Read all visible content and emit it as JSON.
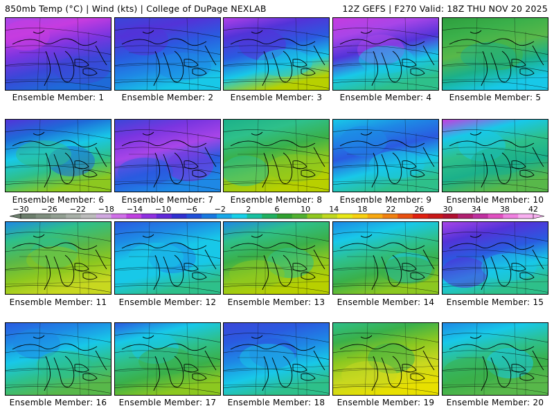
{
  "header": {
    "title_left": "850mb Temp (°C) | Wind (kts) | College of DuPage NEXLAB",
    "title_right": "12Z GEFS | F270 Valid: 18Z THU NOV 20 2025"
  },
  "members": [
    {
      "label": "Ensemble Member: 1",
      "scheme": [
        "#a845e8",
        "#c63ce0",
        "#7a35e0",
        "#3b46d8",
        "#1e6ad8"
      ]
    },
    {
      "label": "Ensemble Member: 2",
      "scheme": [
        "#3b46d8",
        "#5233d8",
        "#2a5ae0",
        "#1e88e5",
        "#18c8e8"
      ]
    },
    {
      "label": "Ensemble Member: 3",
      "scheme": [
        "#b040e8",
        "#5233d8",
        "#2a5ae0",
        "#18c8e8",
        "#b8d000"
      ]
    },
    {
      "label": "Ensemble Member: 4",
      "scheme": [
        "#c63ce0",
        "#a845e8",
        "#5233d8",
        "#18c8e8",
        "#2ec08a"
      ]
    },
    {
      "label": "Ensemble Member: 5",
      "scheme": [
        "#2e9e3e",
        "#3ab04a",
        "#58b84a",
        "#1bb08a",
        "#18c8e8"
      ]
    },
    {
      "label": "Ensemble Member: 6",
      "scheme": [
        "#5233d8",
        "#1e6ad8",
        "#18c8e8",
        "#2ec08a",
        "#8cc820"
      ]
    },
    {
      "label": "Ensemble Member: 7",
      "scheme": [
        "#3b46d8",
        "#7a35e0",
        "#a845e8",
        "#2a5ae0",
        "#1e88e5"
      ]
    },
    {
      "label": "Ensemble Member: 8",
      "scheme": [
        "#1bb08a",
        "#2ec08a",
        "#3ab04a",
        "#8cc820",
        "#b8d000"
      ]
    },
    {
      "label": "Ensemble Member: 9",
      "scheme": [
        "#18c8e8",
        "#1e88e5",
        "#2a5ae0",
        "#18c8e8",
        "#2ec08a"
      ]
    },
    {
      "label": "Ensemble Member: 10",
      "scheme": [
        "#c63ce0",
        "#18c8e8",
        "#2ec08a",
        "#1bb08a",
        "#58b84a"
      ]
    },
    {
      "label": "Ensemble Member: 11",
      "scheme": [
        "#1e88e5",
        "#2ec08a",
        "#58b84a",
        "#8cc820",
        "#c8d820"
      ]
    },
    {
      "label": "Ensemble Member: 12",
      "scheme": [
        "#2a5ae0",
        "#1e88e5",
        "#18c8e8",
        "#18c8e8",
        "#2ec08a"
      ]
    },
    {
      "label": "Ensemble Member: 13",
      "scheme": [
        "#1e88e5",
        "#2ec08a",
        "#3ab04a",
        "#8cc820",
        "#b8d000"
      ]
    },
    {
      "label": "Ensemble Member: 14",
      "scheme": [
        "#1e88e5",
        "#18c8e8",
        "#2ec08a",
        "#3ab04a",
        "#8cc820"
      ]
    },
    {
      "label": "Ensemble Member: 15",
      "scheme": [
        "#a845e8",
        "#5233d8",
        "#2a5ae0",
        "#18c8e8",
        "#2ec08a"
      ]
    },
    {
      "label": "Ensemble Member: 16",
      "scheme": [
        "#2a5ae0",
        "#1e88e5",
        "#18c8e8",
        "#2ec08a",
        "#58b84a"
      ]
    },
    {
      "label": "Ensemble Member: 17",
      "scheme": [
        "#2a5ae0",
        "#18c8e8",
        "#2ec08a",
        "#3ab04a",
        "#8cc820"
      ]
    },
    {
      "label": "Ensemble Member: 18",
      "scheme": [
        "#3b46d8",
        "#2a5ae0",
        "#1e88e5",
        "#18c8e8",
        "#2ec08a"
      ]
    },
    {
      "label": "Ensemble Member: 19",
      "scheme": [
        "#2ec08a",
        "#3ab04a",
        "#8cc820",
        "#c8d820",
        "#e8e000"
      ]
    },
    {
      "label": "Ensemble Member: 20",
      "scheme": [
        "#1e88e5",
        "#18c8e8",
        "#2ec08a",
        "#3ab04a",
        "#58b84a"
      ]
    }
  ],
  "colorbar": {
    "ticks": [
      "-30",
      "-26",
      "-22",
      "-18",
      "-14",
      "-10",
      "-6",
      "-2",
      "2",
      "6",
      "10",
      "14",
      "18",
      "22",
      "26",
      "30",
      "34",
      "38",
      "42"
    ],
    "colors": [
      "#6c7e6c",
      "#7f8f7f",
      "#929f92",
      "#a8b0a8",
      "#bcbcbc",
      "#d0a8e0",
      "#d070e8",
      "#c040e0",
      "#9030e0",
      "#6028d8",
      "#3030d0",
      "#2050d8",
      "#1878e0",
      "#18a8e8",
      "#18d0e8",
      "#18c0a0",
      "#20b060",
      "#30a030",
      "#50b030",
      "#90c820",
      "#c0d820",
      "#e8e818",
      "#f8d010",
      "#f8a810",
      "#f08010",
      "#e85010",
      "#e02010",
      "#c81818",
      "#b01030",
      "#b02070",
      "#c030a0",
      "#e050c0",
      "#f080e0",
      "#f8b0f0"
    ]
  }
}
